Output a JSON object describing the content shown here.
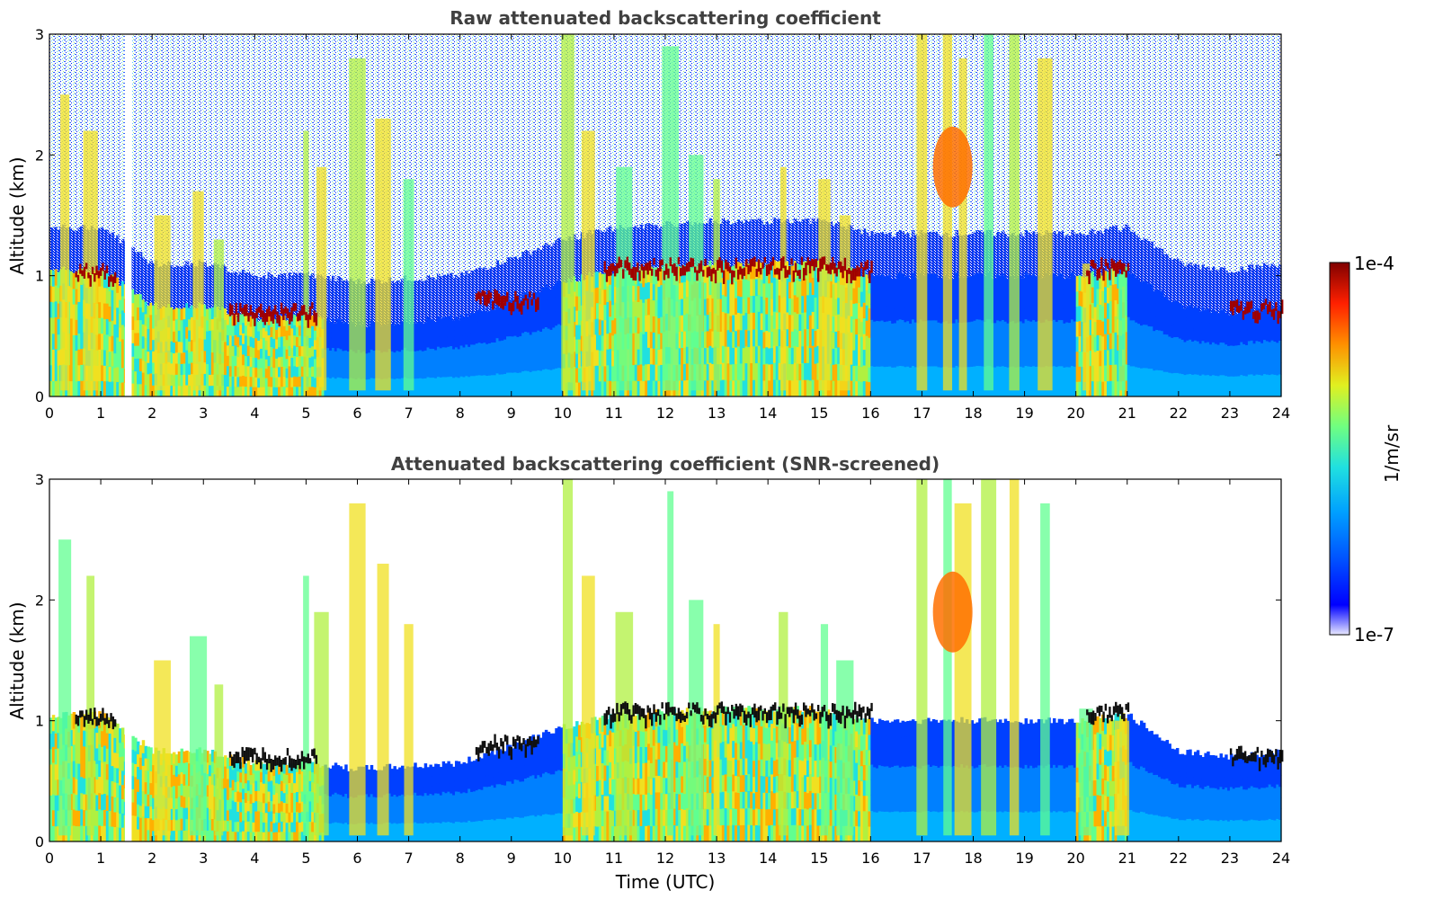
{
  "chart_data": [
    {
      "type": "heatmap",
      "title": "Raw attenuated backscattering coefficient",
      "xlabel": "",
      "ylabel": "Altitude (km)",
      "xlim": [
        0,
        24
      ],
      "ylim": [
        0,
        3
      ],
      "x_ticks": [
        "0",
        "1",
        "2",
        "3",
        "4",
        "5",
        "6",
        "7",
        "8",
        "9",
        "10",
        "11",
        "12",
        "13",
        "14",
        "15",
        "16",
        "17",
        "18",
        "19",
        "20",
        "21",
        "22",
        "23",
        "24"
      ],
      "y_ticks": [
        "0",
        "1",
        "2",
        "3"
      ],
      "colormap": "jet",
      "color_scale": "log",
      "color_range": [
        "1e-7",
        "1e-4"
      ],
      "features": {
        "boundary_layer_top_km": [
          [
            0,
            1.05
          ],
          [
            1,
            1.05
          ],
          [
            2,
            0.75
          ],
          [
            3,
            0.75
          ],
          [
            4,
            0.65
          ],
          [
            5,
            0.65
          ],
          [
            6,
            0.6
          ],
          [
            8,
            0.65
          ],
          [
            9,
            0.8
          ],
          [
            10,
            0.95
          ],
          [
            11,
            1.05
          ],
          [
            13,
            1.1
          ],
          [
            15,
            1.1
          ],
          [
            16,
            1.0
          ],
          [
            18,
            1.0
          ],
          [
            20,
            1.0
          ],
          [
            21,
            1.05
          ],
          [
            22,
            0.75
          ],
          [
            23,
            0.7
          ],
          [
            24,
            0.75
          ]
        ],
        "cloud_layers": [
          {
            "x_start": 0.5,
            "x_end": 1.3,
            "alt_km": 1.0
          },
          {
            "x_start": 3.5,
            "x_end": 5.2,
            "alt_km": 0.68
          },
          {
            "x_start": 8.3,
            "x_end": 9.5,
            "alt_km": 0.78
          },
          {
            "x_start": 10.8,
            "x_end": 16.0,
            "alt_km": 1.05
          },
          {
            "x_start": 20.2,
            "x_end": 21.0,
            "alt_km": 1.05
          },
          {
            "x_start": 23.0,
            "x_end": 24.0,
            "alt_km": 0.7
          }
        ],
        "data_gap_hours": [
          [
            1.47,
            1.6
          ]
        ]
      }
    },
    {
      "type": "heatmap",
      "title": "Attenuated backscattering coefficient (SNR-screened)",
      "xlabel": "Time (UTC)",
      "ylabel": "Altitude (km)",
      "xlim": [
        0,
        24
      ],
      "ylim": [
        0,
        3
      ],
      "x_ticks": [
        "0",
        "1",
        "2",
        "3",
        "4",
        "5",
        "6",
        "7",
        "8",
        "9",
        "10",
        "11",
        "12",
        "13",
        "14",
        "15",
        "16",
        "17",
        "18",
        "19",
        "20",
        "21",
        "22",
        "23",
        "24"
      ],
      "y_ticks": [
        "0",
        "1",
        "2",
        "3"
      ],
      "colormap": "jet",
      "color_scale": "log",
      "color_range": [
        "1e-7",
        "1e-4"
      ],
      "screened_background": "white"
    }
  ],
  "colorbar": {
    "label": "1/m/sr",
    "max_label": "1e-4",
    "min_label": "1e-7"
  }
}
